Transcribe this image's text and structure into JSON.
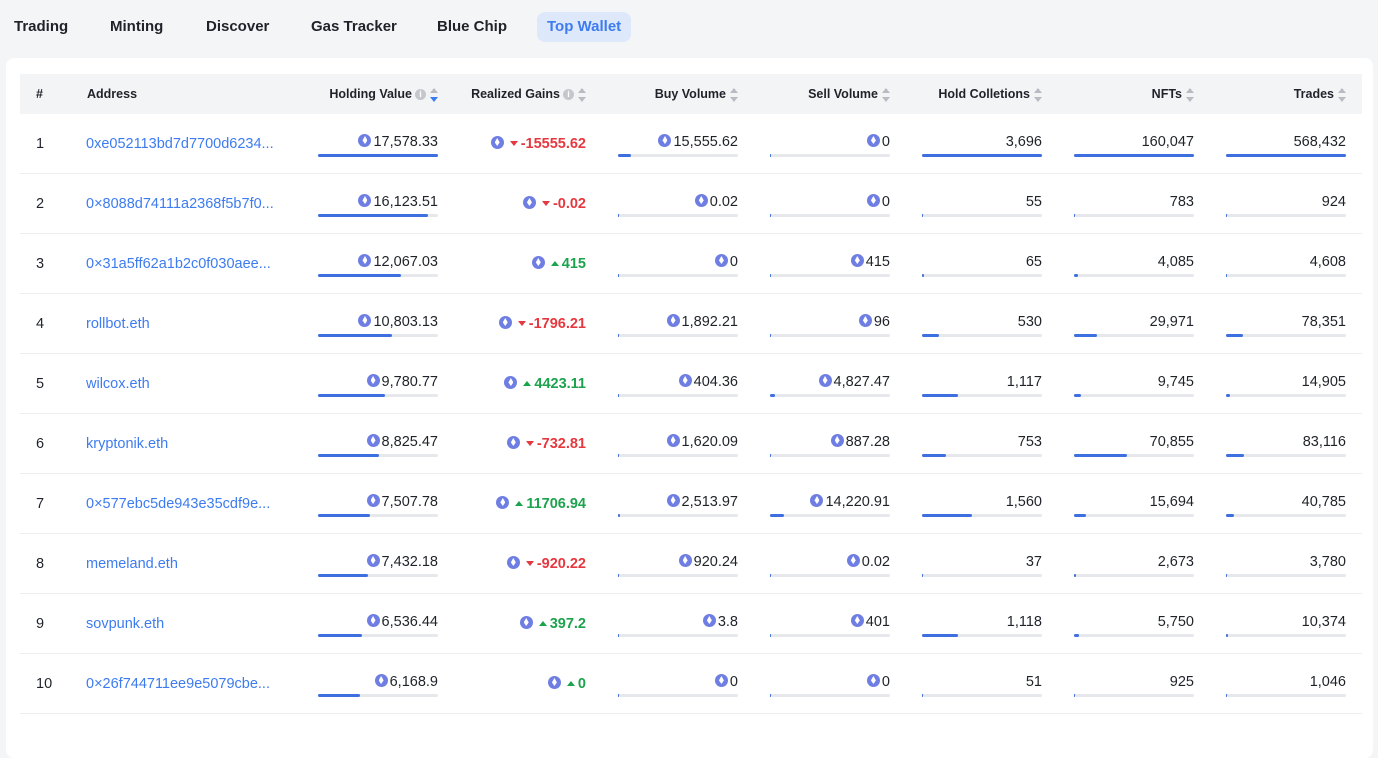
{
  "tabs": [
    {
      "label": "Trading",
      "active": false
    },
    {
      "label": "Minting",
      "active": false
    },
    {
      "label": "Discover",
      "active": false
    },
    {
      "label": "Gas Tracker",
      "active": false
    },
    {
      "label": "Blue Chip",
      "active": false
    },
    {
      "label": "Top Wallet",
      "active": true
    }
  ],
  "columns": {
    "rank": "#",
    "address": "Address",
    "holding_value": "Holding Value",
    "realized_gains": "Realized Gains",
    "buy_volume": "Buy Volume",
    "sell_volume": "Sell Volume",
    "hold_collections": "Hold Colletions",
    "nfts": "NFTs",
    "trades": "Trades"
  },
  "sort": {
    "column": "holding_value",
    "direction": "desc"
  },
  "icons": {
    "currency": "eth-icon",
    "info": "info-icon",
    "sort": "sort-icon",
    "gain_up": "triangle-up-icon",
    "gain_down": "triangle-down-icon"
  },
  "colors": {
    "accent": "#3d7bf0",
    "negative": "#e5383f",
    "positive": "#1ca34d",
    "bar": "#3d6fe0"
  },
  "rows": [
    {
      "rank": "1",
      "address": "0xe052113bd7d7700d6234...",
      "holding_value": "17,578.33",
      "holding_pct": 1.0,
      "gain": "-15555.62",
      "gain_dir": "down",
      "buy": "15,555.62",
      "buy_pct": 0.11,
      "sell": "0",
      "sell_pct": 0.0,
      "collections": "3,696",
      "collections_pct": 1.0,
      "nfts": "160,047",
      "nfts_pct": 1.0,
      "trades": "568,432",
      "trades_pct": 1.0
    },
    {
      "rank": "2",
      "address": "0×8088d74111a2368f5b7f0...",
      "holding_value": "16,123.51",
      "holding_pct": 0.92,
      "gain": "-0.02",
      "gain_dir": "down",
      "buy": "0.02",
      "buy_pct": 0.0,
      "sell": "0",
      "sell_pct": 0.0,
      "collections": "55",
      "collections_pct": 0.01,
      "nfts": "783",
      "nfts_pct": 0.0,
      "trades": "924",
      "trades_pct": 0.0
    },
    {
      "rank": "3",
      "address": "0×31a5ff62a1b2c0f030aee...",
      "holding_value": "12,067.03",
      "holding_pct": 0.69,
      "gain": "415",
      "gain_dir": "up",
      "buy": "0",
      "buy_pct": 0.0,
      "sell": "415",
      "sell_pct": 0.0,
      "collections": "65",
      "collections_pct": 0.02,
      "nfts": "4,085",
      "nfts_pct": 0.03,
      "trades": "4,608",
      "trades_pct": 0.01
    },
    {
      "rank": "4",
      "address": "rollbot.eth",
      "holding_value": "10,803.13",
      "holding_pct": 0.62,
      "gain": "-1796.21",
      "gain_dir": "down",
      "buy": "1,892.21",
      "buy_pct": 0.01,
      "sell": "96",
      "sell_pct": 0.0,
      "collections": "530",
      "collections_pct": 0.14,
      "nfts": "29,971",
      "nfts_pct": 0.19,
      "trades": "78,351",
      "trades_pct": 0.14
    },
    {
      "rank": "5",
      "address": "wilcox.eth",
      "holding_value": "9,780.77",
      "holding_pct": 0.56,
      "gain": "4423.11",
      "gain_dir": "up",
      "buy": "404.36",
      "buy_pct": 0.0,
      "sell": "4,827.47",
      "sell_pct": 0.04,
      "collections": "1,117",
      "collections_pct": 0.3,
      "nfts": "9,745",
      "nfts_pct": 0.06,
      "trades": "14,905",
      "trades_pct": 0.03
    },
    {
      "rank": "6",
      "address": "kryptonik.eth",
      "holding_value": "8,825.47",
      "holding_pct": 0.51,
      "gain": "-732.81",
      "gain_dir": "down",
      "buy": "1,620.09",
      "buy_pct": 0.01,
      "sell": "887.28",
      "sell_pct": 0.01,
      "collections": "753",
      "collections_pct": 0.2,
      "nfts": "70,855",
      "nfts_pct": 0.44,
      "trades": "83,116",
      "trades_pct": 0.15
    },
    {
      "rank": "7",
      "address": "0×577ebc5de943e35cdf9e...",
      "holding_value": "7,507.78",
      "holding_pct": 0.43,
      "gain": "11706.94",
      "gain_dir": "up",
      "buy": "2,513.97",
      "buy_pct": 0.02,
      "sell": "14,220.91",
      "sell_pct": 0.12,
      "collections": "1,560",
      "collections_pct": 0.42,
      "nfts": "15,694",
      "nfts_pct": 0.1,
      "trades": "40,785",
      "trades_pct": 0.07
    },
    {
      "rank": "8",
      "address": "memeland.eth",
      "holding_value": "7,432.18",
      "holding_pct": 0.42,
      "gain": "-920.22",
      "gain_dir": "down",
      "buy": "920.24",
      "buy_pct": 0.01,
      "sell": "0.02",
      "sell_pct": 0.0,
      "collections": "37",
      "collections_pct": 0.01,
      "nfts": "2,673",
      "nfts_pct": 0.02,
      "trades": "3,780",
      "trades_pct": 0.01
    },
    {
      "rank": "9",
      "address": "sovpunk.eth",
      "holding_value": "6,536.44",
      "holding_pct": 0.37,
      "gain": "397.2",
      "gain_dir": "up",
      "buy": "3.8",
      "buy_pct": 0.0,
      "sell": "401",
      "sell_pct": 0.0,
      "collections": "1,118",
      "collections_pct": 0.3,
      "nfts": "5,750",
      "nfts_pct": 0.04,
      "trades": "10,374",
      "trades_pct": 0.02
    },
    {
      "rank": "10",
      "address": "0×26f744711ee9e5079cbe...",
      "holding_value": "6,168.9",
      "holding_pct": 0.35,
      "gain": "0",
      "gain_dir": "up",
      "buy": "0",
      "buy_pct": 0.0,
      "sell": "0",
      "sell_pct": 0.0,
      "collections": "51",
      "collections_pct": 0.01,
      "nfts": "925",
      "nfts_pct": 0.01,
      "trades": "1,046",
      "trades_pct": 0.0
    }
  ]
}
